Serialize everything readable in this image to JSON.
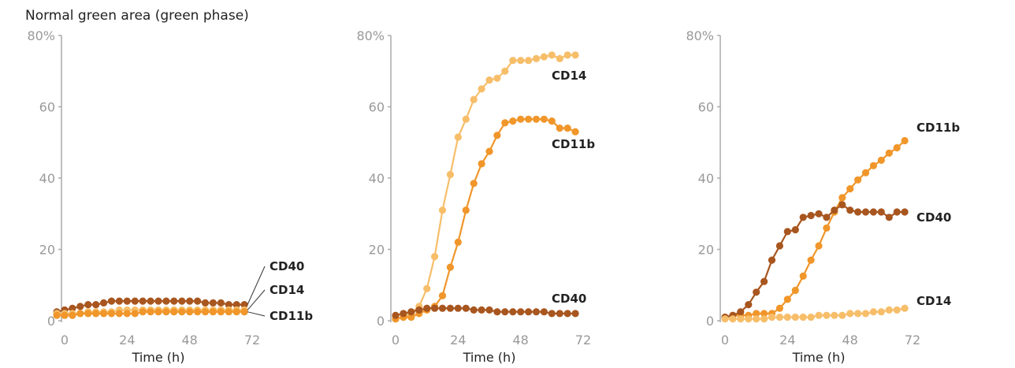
{
  "y_axis_title": "Normal  green area (green phase)",
  "colors": {
    "CD14": "#f7be6a",
    "CD11b": "#f0962a",
    "CD40": "#a8561f",
    "axis": "#aaaaaa"
  },
  "chart_data": [
    {
      "type": "line",
      "title": "",
      "xlabel": "Time (h)",
      "ylabel": "Normal  green area (green phase)",
      "xlim": [
        0,
        72
      ],
      "ylim": [
        0,
        80
      ],
      "xticks": [
        "0",
        "24",
        "48",
        "72"
      ],
      "yticks": [
        "0",
        "20",
        "40",
        "60",
        "80%"
      ],
      "x": [
        -3,
        0,
        3,
        6,
        9,
        12,
        15,
        18,
        21,
        24,
        27,
        30,
        33,
        36,
        39,
        42,
        45,
        48,
        51,
        54,
        57,
        60,
        63,
        66,
        69
      ],
      "series": [
        {
          "name": "CD40",
          "values": [
            2.5,
            3,
            3.5,
            4,
            4.5,
            4.5,
            5,
            5.5,
            5.5,
            5.5,
            5.5,
            5.5,
            5.5,
            5.5,
            5.5,
            5.5,
            5.5,
            5.5,
            5.5,
            5,
            5,
            5,
            4.5,
            4.5,
            4.5
          ]
        },
        {
          "name": "CD14",
          "values": [
            2,
            2,
            2,
            2,
            2.5,
            2.5,
            2.5,
            2.5,
            3,
            3,
            3,
            3,
            3,
            3,
            3,
            3,
            3,
            3,
            3,
            3,
            3,
            3,
            3,
            3,
            3
          ]
        },
        {
          "name": "CD11b",
          "values": [
            1.5,
            1.5,
            1.5,
            2,
            2,
            2,
            2,
            2,
            2,
            2,
            2,
            2.5,
            2.5,
            2.5,
            2.5,
            2.5,
            2.5,
            2.5,
            2.5,
            2.5,
            2.5,
            2.5,
            2.5,
            2.5,
            2.5
          ]
        }
      ]
    },
    {
      "type": "line",
      "title": "",
      "xlabel": "Time (h)",
      "xlim": [
        0,
        72
      ],
      "ylim": [
        0,
        80
      ],
      "xticks": [
        "0",
        "24",
        "48",
        "72"
      ],
      "yticks": [
        "0",
        "20",
        "40",
        "60",
        "80%"
      ],
      "x": [
        0,
        3,
        6,
        9,
        12,
        15,
        18,
        21,
        24,
        27,
        30,
        33,
        36,
        39,
        42,
        45,
        48,
        51,
        54,
        57,
        60,
        63,
        66,
        69
      ],
      "series": [
        {
          "name": "CD14",
          "values": [
            0.5,
            1,
            2,
            4,
            9,
            18,
            31,
            41,
            51.5,
            56.5,
            62,
            65,
            67.5,
            68,
            70,
            73,
            73,
            73,
            73.5,
            74,
            74.5,
            73.5,
            74.5,
            74.5
          ]
        },
        {
          "name": "CD11b",
          "values": [
            0.5,
            1,
            1,
            2,
            3,
            4,
            7,
            15,
            22,
            31,
            38.5,
            44,
            47.5,
            52,
            55.5,
            56,
            56.5,
            56.5,
            56.5,
            56.5,
            56,
            54,
            54,
            53
          ]
        },
        {
          "name": "CD40",
          "values": [
            1.5,
            2,
            2.5,
            3,
            3.5,
            3.5,
            3.5,
            3.5,
            3.5,
            3.5,
            3,
            3,
            3,
            2.5,
            2.5,
            2.5,
            2.5,
            2.5,
            2.5,
            2.5,
            2,
            2,
            2,
            2
          ]
        }
      ]
    },
    {
      "type": "line",
      "title": "",
      "xlabel": "Time (h)",
      "xlim": [
        0,
        72
      ],
      "ylim": [
        0,
        80
      ],
      "xticks": [
        "0",
        "24",
        "48",
        "72"
      ],
      "yticks": [
        "0",
        "20",
        "40",
        "60",
        "80%"
      ],
      "x": [
        0,
        3,
        6,
        9,
        12,
        15,
        18,
        21,
        24,
        27,
        30,
        33,
        36,
        39,
        42,
        45,
        48,
        51,
        54,
        57,
        60,
        63,
        66,
        69
      ],
      "series": [
        {
          "name": "CD11b",
          "values": [
            1,
            1.5,
            1.5,
            1.5,
            2,
            2,
            2,
            3.5,
            6,
            8.5,
            12.5,
            17,
            21,
            26,
            30.5,
            34.5,
            37,
            39.5,
            41.5,
            43.5,
            45,
            47,
            48.5,
            50.5
          ]
        },
        {
          "name": "CD40",
          "values": [
            1,
            1.5,
            2.5,
            4.5,
            8,
            11,
            17,
            21,
            25,
            25.5,
            29,
            29.5,
            30,
            29,
            31,
            32.5,
            31,
            30.5,
            30.5,
            30.5,
            30.5,
            29,
            30.5,
            30.5
          ]
        },
        {
          "name": "CD14",
          "values": [
            0.5,
            0.5,
            0.5,
            0.5,
            0.5,
            0.5,
            1,
            1,
            1,
            1,
            1,
            1,
            1.5,
            1.5,
            1.5,
            1.5,
            2,
            2,
            2,
            2.5,
            2.5,
            3,
            3,
            3.5
          ]
        }
      ]
    }
  ],
  "series_labels": [
    [
      {
        "text": "CD40",
        "series": "CD40"
      },
      {
        "text": "CD14",
        "series": "CD14"
      },
      {
        "text": "CD11b",
        "series": "CD11b"
      }
    ],
    [
      {
        "text": "CD14",
        "series": "CD14"
      },
      {
        "text": "CD11b",
        "series": "CD11b"
      },
      {
        "text": "CD40",
        "series": "CD40"
      }
    ],
    [
      {
        "text": "CD11b",
        "series": "CD11b"
      },
      {
        "text": "CD40",
        "series": "CD40"
      },
      {
        "text": "CD14",
        "series": "CD14"
      }
    ]
  ]
}
